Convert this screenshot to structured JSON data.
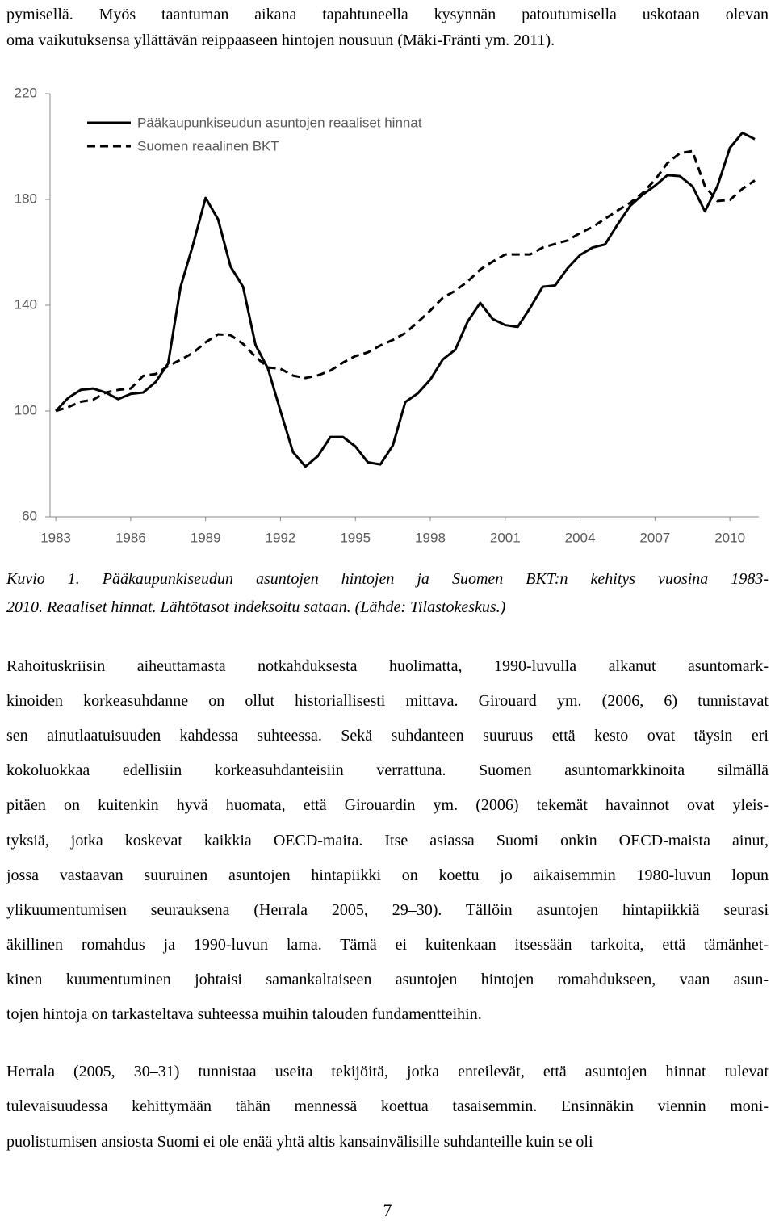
{
  "document": {
    "intro_lines": [
      "pymisellä. Myös taantuman aikana tapahtuneella kysynnän patoutumisella uskotaan olevan",
      "oma vaikutuksensa yllättävän reippaaseen hintojen nousuun (Mäki-Fränti ym. 2011)."
    ],
    "caption_lines": [
      "Kuvio 1. Pääkaupunkiseudun asuntojen hintojen ja Suomen BKT:n kehitys vuosina 1983-",
      "2010. Reaaliset hinnat. Lähtötasot indeksoitu sataan. (Lähde: Tilastokeskus.)"
    ],
    "paragraphs": [
      [
        "Rahoituskriisin aiheuttamasta notkahduksesta huolimatta, 1990-luvulla alkanut asuntomark-",
        "kinoiden korkeasuhdanne on ollut historiallisesti mittava. Girouard ym. (2006, 6) tunnistavat",
        "sen ainutlaatuisuuden kahdessa suhteessa. Sekä suhdanteen suuruus että kesto ovat täysin eri",
        "kokoluokkaa edellisiin korkeasuhdanteisiin verrattuna. Suomen asuntomarkkinoita silmällä",
        "pitäen on kuitenkin hyvä huomata, että Girouardin ym. (2006) tekemät havainnot ovat yleis-",
        "tyksiä, jotka koskevat kaikkia OECD-maita. Itse asiassa Suomi onkin OECD-maista ainut,",
        "jossa vastaavan suuruinen asuntojen hintapiikki on koettu jo aikaisemmin 1980-luvun lopun",
        "ylikuumentumisen seurauksena (Herrala 2005, 29–30). Tällöin asuntojen hintapiikkiä seurasi",
        "äkillinen romahdus ja 1990-luvun lama. Tämä ei kuitenkaan itsessään tarkoita, että tämänhet-",
        "kinen kuumentuminen johtaisi samankaltaiseen asuntojen hintojen romahdukseen, vaan asun-",
        "tojen hintoja on tarkasteltava suhteessa muihin talouden fundamentteihin."
      ],
      [
        "Herrala (2005, 30–31) tunnistaa useita tekijöitä, jotka enteilevät, että asuntojen hinnat tulevat",
        "tulevaisuudessa kehittymään tähän mennessä koettua tasaisemmin. Ensinnäkin viennin moni-",
        "puolistumisen ansiosta Suomi ei ole enää yhtä altis kansainvälisille suhdanteille kuin se oli"
      ]
    ],
    "page_number": "7"
  },
  "chart_data": {
    "type": "line",
    "x": [
      1983,
      1983.5,
      1984,
      1984.5,
      1985,
      1985.5,
      1986,
      1986.5,
      1987,
      1987.5,
      1988,
      1988.5,
      1989,
      1989.5,
      1990,
      1990.5,
      1991,
      1991.5,
      1992,
      1992.5,
      1993,
      1993.5,
      1994,
      1994.5,
      1995,
      1995.5,
      1996,
      1996.5,
      1997,
      1997.5,
      1998,
      1998.5,
      1999,
      1999.5,
      2000,
      2000.5,
      2001,
      2001.5,
      2002,
      2002.5,
      2003,
      2003.5,
      2004,
      2004.5,
      2005,
      2005.5,
      2006,
      2006.5,
      2007,
      2007.5,
      2008,
      2008.5,
      2009,
      2009.5,
      2010,
      2010.5,
      2011
    ],
    "series": [
      {
        "name": "Pääkaupunkiseudun asuntojen reaaliset hinnat",
        "color": "#000000",
        "line_style": "solid",
        "values": [
          100,
          105,
          108,
          108.5,
          107,
          104.5,
          106.5,
          107,
          111,
          118,
          147,
          163,
          180.6,
          172.5,
          154.6,
          147,
          125,
          116,
          100,
          84.5,
          79,
          83,
          90.2,
          90.2,
          86.6,
          80.6,
          79.8,
          87,
          103.4,
          106.7,
          111.9,
          119.5,
          123.2,
          133.9,
          140.9,
          134.8,
          132.5,
          131.8,
          139,
          147,
          147.5,
          154,
          159,
          161.8,
          163,
          170.5,
          177.5,
          181.8,
          185.2,
          189.2,
          188.8,
          185,
          175.5,
          185,
          199.5,
          205.2,
          202.8
        ]
      },
      {
        "name": "Suomen reaalinen BKT",
        "color": "#000000",
        "line_style": "dashed",
        "values": [
          100,
          101.5,
          103.5,
          104.3,
          107,
          108,
          108.5,
          113.3,
          114,
          117,
          119.4,
          122,
          126,
          129,
          128.7,
          125.4,
          120.5,
          116.5,
          116,
          113.4,
          112.5,
          113.5,
          115.3,
          118.3,
          120.8,
          122.2,
          124.8,
          126.9,
          129.5,
          133.6,
          138,
          142.8,
          145.5,
          149,
          153.5,
          156.5,
          159.2,
          159.2,
          159.2,
          161.8,
          163.2,
          164.5,
          167.3,
          169.6,
          172.7,
          175.8,
          178.7,
          182.4,
          187.4,
          193.8,
          197.5,
          198.3,
          185,
          179.4,
          179.8,
          184,
          187.2
        ]
      }
    ],
    "xlim": [
      1982.77,
      2011.16
    ],
    "ylim": [
      60,
      220
    ],
    "xticks": [
      1983,
      1986,
      1989,
      1992,
      1995,
      1998,
      2001,
      2004,
      2007,
      2010
    ],
    "yticks": [
      60,
      100,
      140,
      180,
      220
    ],
    "grid": false,
    "legend": "upper left"
  }
}
